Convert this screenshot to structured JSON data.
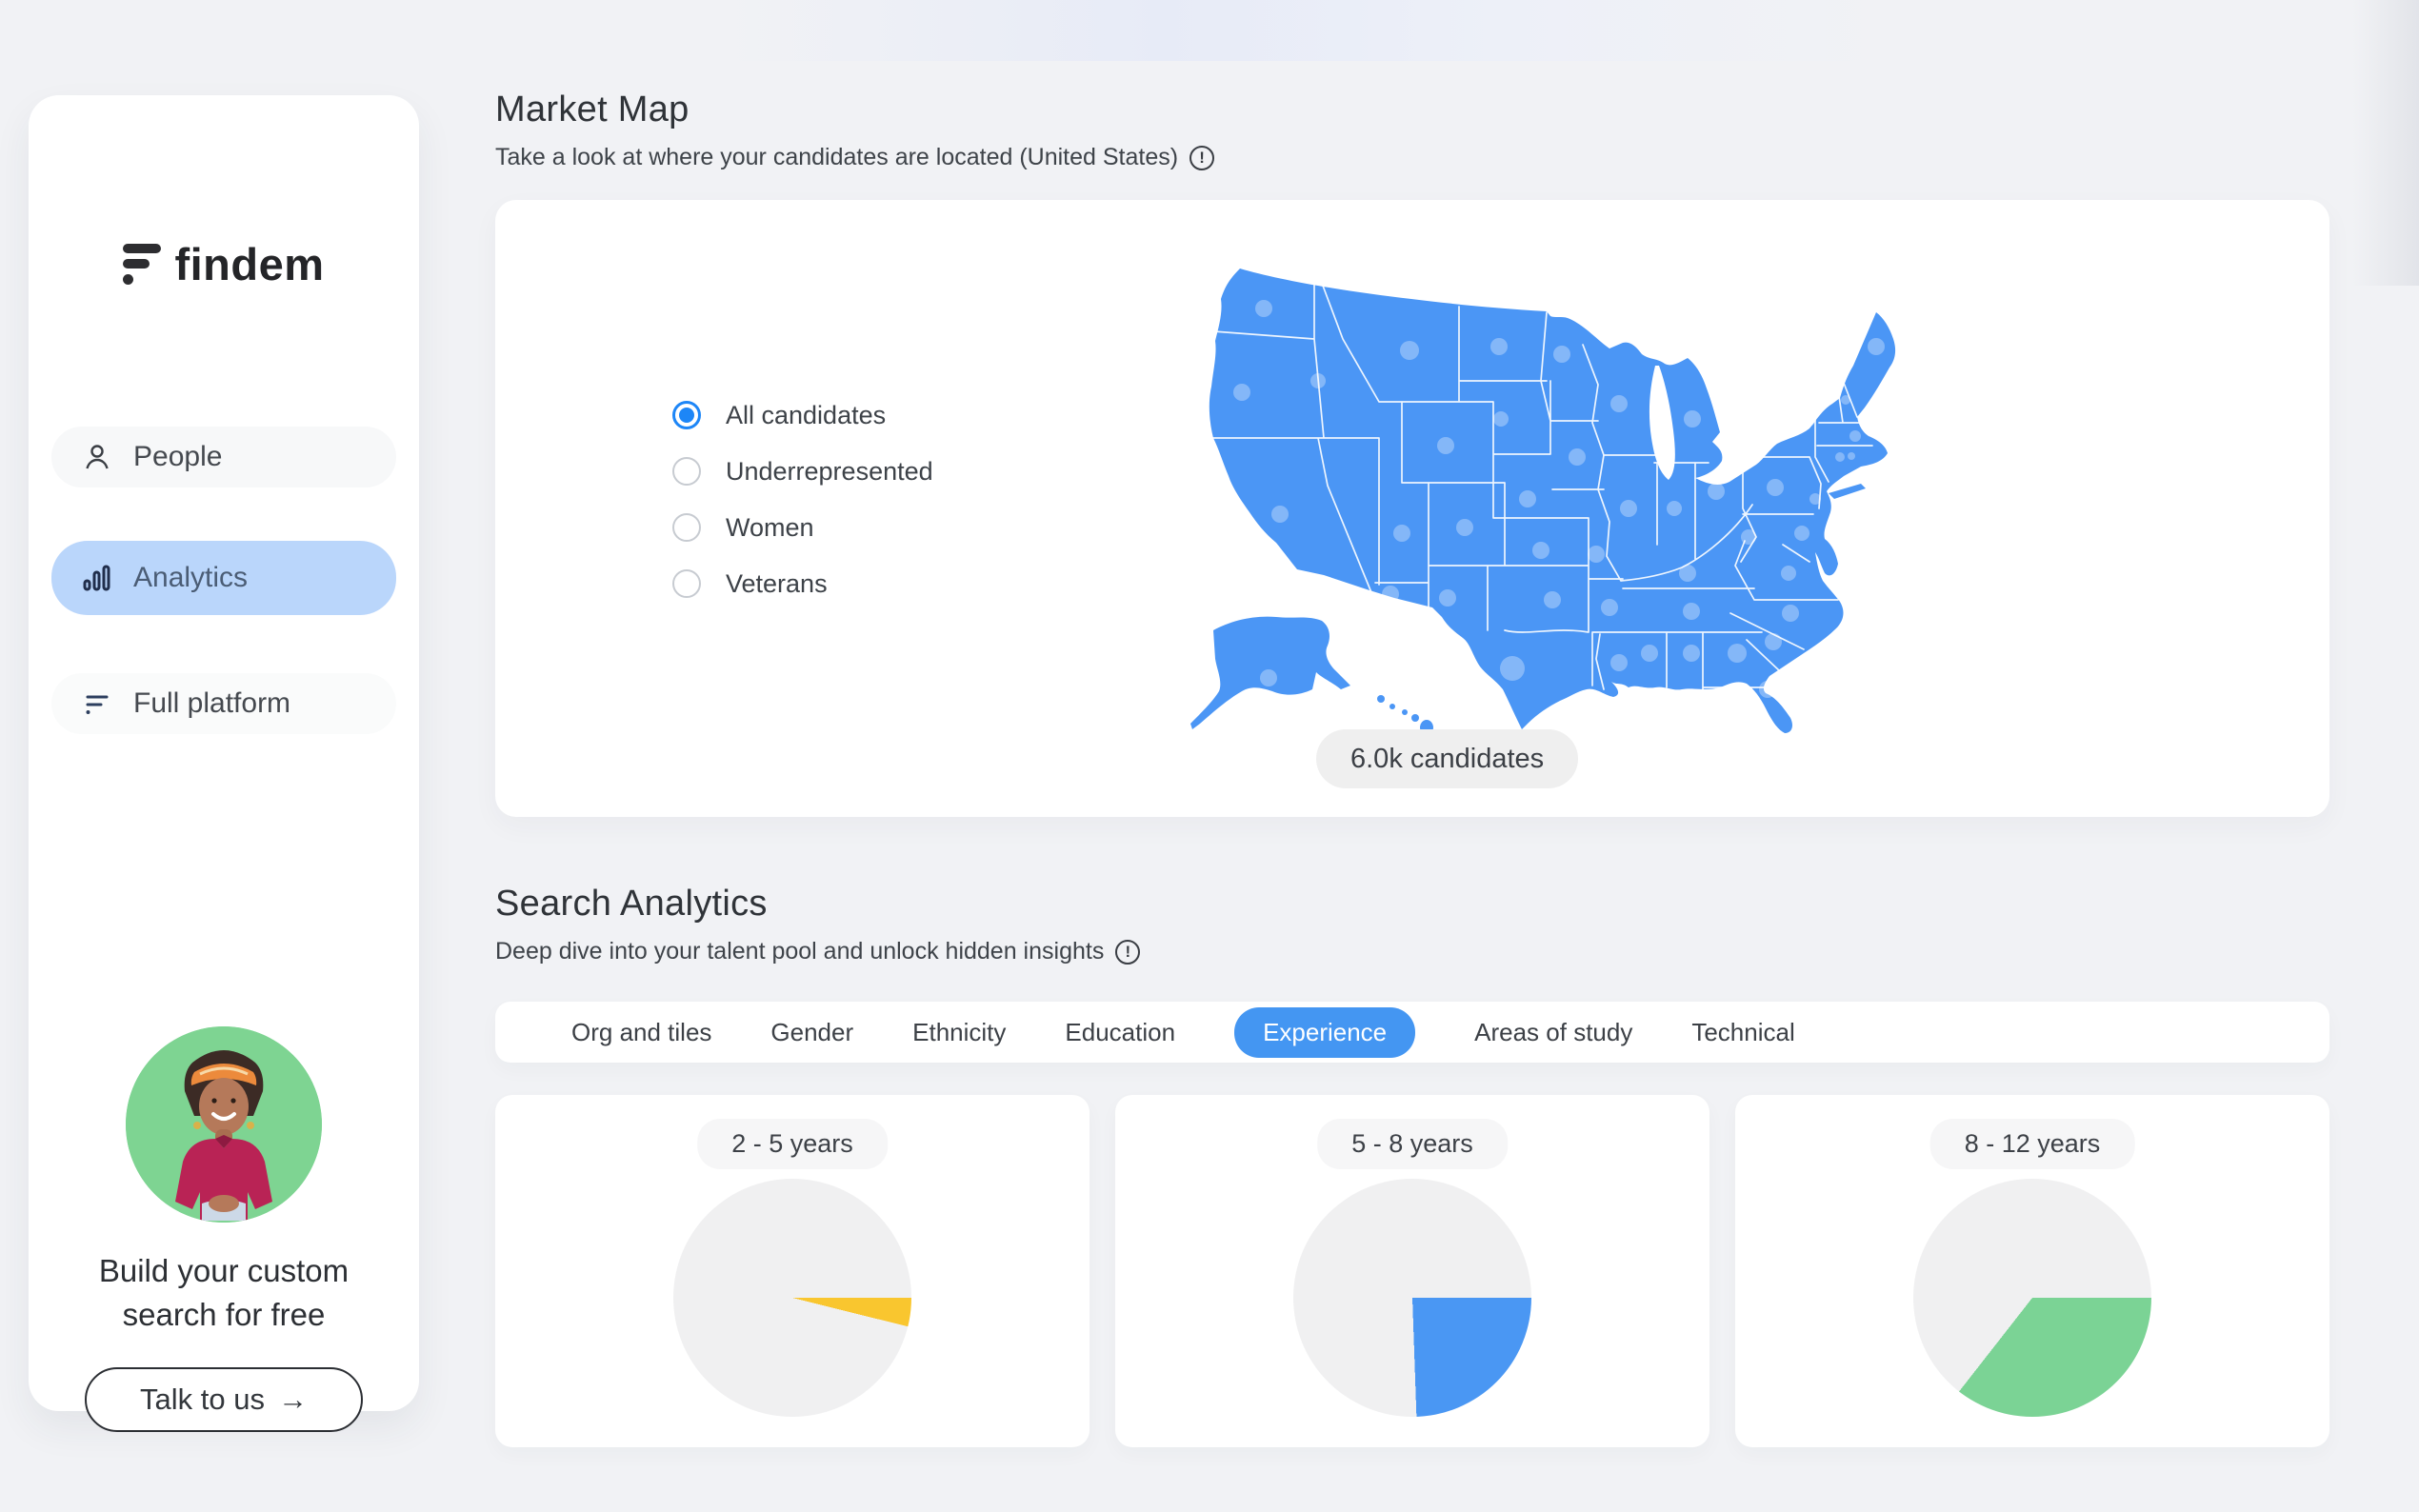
{
  "brand": {
    "name": "findem"
  },
  "sidebar": {
    "items": [
      {
        "label": "People",
        "icon": "person-icon",
        "active": false
      },
      {
        "label": "Analytics",
        "icon": "bar-chart-icon",
        "active": true
      },
      {
        "label": "Full platform",
        "icon": "findem-mark-icon",
        "active": false
      }
    ],
    "promo": {
      "line1": "Build your custom",
      "line2": "search for free",
      "cta": "Talk to us",
      "cta_arrow": "→"
    }
  },
  "market_map": {
    "title": "Market Map",
    "subtitle": "Take a look at where your candidates are located (United States)",
    "info_glyph": "!",
    "radios": [
      {
        "label": "All candidates",
        "selected": true
      },
      {
        "label": "Underrepresented",
        "selected": false
      },
      {
        "label": "Women",
        "selected": false
      },
      {
        "label": "Veterans",
        "selected": false
      }
    ],
    "badge": "6.0k candidates",
    "map_color": "#4b96f5",
    "dots": [
      [
        95,
        52,
        9
      ],
      [
        72,
        140,
        9
      ],
      [
        152,
        128,
        8
      ],
      [
        248,
        96,
        10
      ],
      [
        342,
        92,
        9
      ],
      [
        408,
        100,
        9
      ],
      [
        468,
        152,
        9
      ],
      [
        545,
        168,
        9
      ],
      [
        286,
        196,
        9
      ],
      [
        344,
        168,
        8
      ],
      [
        112,
        268,
        9
      ],
      [
        240,
        288,
        9
      ],
      [
        306,
        282,
        9
      ],
      [
        372,
        252,
        9
      ],
      [
        424,
        208,
        9
      ],
      [
        478,
        262,
        9
      ],
      [
        526,
        262,
        8
      ],
      [
        570,
        244,
        9
      ],
      [
        540,
        330,
        9
      ],
      [
        604,
        292,
        8
      ],
      [
        632,
        240,
        9
      ],
      [
        662,
        164,
        14
      ],
      [
        738,
        92,
        9
      ],
      [
        694,
        140,
        5
      ],
      [
        706,
        148,
        5
      ],
      [
        716,
        186,
        6
      ],
      [
        700,
        208,
        5
      ],
      [
        712,
        207,
        4
      ],
      [
        674,
        252,
        6
      ],
      [
        660,
        288,
        8
      ],
      [
        646,
        330,
        8
      ],
      [
        648,
        372,
        9
      ],
      [
        630,
        402,
        9
      ],
      [
        592,
        414,
        10
      ],
      [
        544,
        414,
        9
      ],
      [
        500,
        414,
        9
      ],
      [
        544,
        370,
        9
      ],
      [
        458,
        366,
        9
      ],
      [
        468,
        424,
        9
      ],
      [
        444,
        310,
        9
      ],
      [
        386,
        306,
        9
      ],
      [
        398,
        358,
        9
      ],
      [
        356,
        430,
        13
      ],
      [
        288,
        356,
        9
      ],
      [
        228,
        352,
        9
      ],
      [
        624,
        452,
        9
      ],
      [
        100,
        440,
        9
      ]
    ],
    "highlight_dot": [
      84,
      330,
      24
    ]
  },
  "search_analytics": {
    "title": "Search Analytics",
    "subtitle": "Deep dive into your talent pool and unlock hidden insights",
    "info_glyph": "!",
    "tabs": [
      {
        "label": "Org and tiles",
        "active": false
      },
      {
        "label": "Gender",
        "active": false
      },
      {
        "label": "Ethnicity",
        "active": false
      },
      {
        "label": "Education",
        "active": false
      },
      {
        "label": "Experience",
        "active": true
      },
      {
        "label": "Areas of study",
        "active": false
      },
      {
        "label": "Technical",
        "active": false
      }
    ]
  },
  "chart_data": [
    {
      "type": "pie",
      "title": "2 - 5 years",
      "legend_position": "none",
      "segments": [
        {
          "label": "2 - 5 years",
          "percent": 3.9,
          "sweep_deg": 14,
          "color": "#f9c62f"
        },
        {
          "label": "remainder",
          "percent": 96.1,
          "sweep_deg": 346,
          "color": "#f0f0f1"
        }
      ],
      "start_angle": "3-o'clock, clockwise"
    },
    {
      "type": "pie",
      "title": "5 - 8 years",
      "legend_position": "none",
      "segments": [
        {
          "label": "5 - 8 years",
          "percent": 24.4,
          "sweep_deg": 88,
          "color": "#4a97f3"
        },
        {
          "label": "remainder",
          "percent": 75.6,
          "sweep_deg": 272,
          "color": "#f0f0f1"
        }
      ],
      "start_angle": "3-o'clock, clockwise"
    },
    {
      "type": "pie",
      "title": "8 - 12 years",
      "legend_position": "none",
      "segments": [
        {
          "label": "8 - 12 years",
          "percent": 35.6,
          "sweep_deg": 128,
          "color": "#7bd395"
        },
        {
          "label": "remainder",
          "percent": 64.4,
          "sweep_deg": 232,
          "color": "#f0f0f1"
        }
      ],
      "start_angle": "3-o'clock, clockwise"
    }
  ]
}
